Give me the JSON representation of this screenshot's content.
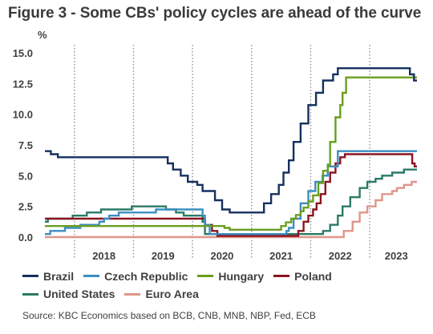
{
  "title": "Figure 3 - Some CBs' policy cycles are ahead of the curve",
  "source": "Source: KBC Economics based on BCB, CNB, MNB, NBP, Fed, ECB",
  "chart_data": {
    "type": "line",
    "title": "Figure 3 - Some CBs' policy cycles are ahead of the curve",
    "ylabel": "%",
    "xlabel": "",
    "ylim": [
      0,
      15
    ],
    "xlim": [
      2017.5,
      2023.8
    ],
    "yticks": [
      0,
      2.5,
      5,
      7.5,
      10,
      12.5,
      15
    ],
    "ytick_labels": [
      "0.0",
      "2.5",
      "5.0",
      "7.5",
      "10.0",
      "12.5",
      "15.0"
    ],
    "xtick_labels": [
      "2018",
      "2019",
      "2020",
      "2021",
      "2022",
      "2023"
    ],
    "x_separators": [
      2018.0,
      2019.0,
      2020.0,
      2021.0,
      2022.0,
      2023.0
    ],
    "grid": "dotted vertical year separators",
    "legend_position": "bottom",
    "series": [
      {
        "name": "Brazil",
        "color": "#15305f",
        "step": true,
        "points": [
          [
            2017.5,
            7.0
          ],
          [
            2017.6,
            6.75
          ],
          [
            2017.72,
            6.5
          ],
          [
            2018.95,
            6.5
          ],
          [
            2019.58,
            6.0
          ],
          [
            2019.67,
            5.5
          ],
          [
            2019.8,
            5.0
          ],
          [
            2019.92,
            4.5
          ],
          [
            2020.08,
            4.25
          ],
          [
            2020.17,
            3.75
          ],
          [
            2020.38,
            3.0
          ],
          [
            2020.5,
            2.25
          ],
          [
            2020.63,
            2.0
          ],
          [
            2021.21,
            2.75
          ],
          [
            2021.33,
            3.5
          ],
          [
            2021.46,
            4.25
          ],
          [
            2021.54,
            5.25
          ],
          [
            2021.63,
            6.25
          ],
          [
            2021.71,
            7.75
          ],
          [
            2021.83,
            9.25
          ],
          [
            2021.96,
            10.75
          ],
          [
            2022.09,
            11.75
          ],
          [
            2022.21,
            12.75
          ],
          [
            2022.38,
            13.25
          ],
          [
            2022.46,
            13.75
          ],
          [
            2023.6,
            13.75
          ],
          [
            2023.68,
            13.25
          ],
          [
            2023.75,
            12.75
          ],
          [
            2023.8,
            12.75
          ]
        ]
      },
      {
        "name": "Czech Republic",
        "color": "#3a8ec2",
        "step": true,
        "points": [
          [
            2017.5,
            0.25
          ],
          [
            2017.59,
            0.5
          ],
          [
            2017.84,
            0.75
          ],
          [
            2018.1,
            1.0
          ],
          [
            2018.42,
            1.25
          ],
          [
            2018.5,
            1.5
          ],
          [
            2018.59,
            1.75
          ],
          [
            2018.75,
            2.0
          ],
          [
            2019.38,
            2.25
          ],
          [
            2020.08,
            2.25
          ],
          [
            2020.17,
            1.75
          ],
          [
            2020.21,
            1.0
          ],
          [
            2020.29,
            0.25
          ],
          [
            2021.46,
            0.25
          ],
          [
            2021.59,
            0.5
          ],
          [
            2021.63,
            0.75
          ],
          [
            2021.71,
            1.5
          ],
          [
            2021.83,
            2.75
          ],
          [
            2021.96,
            3.75
          ],
          [
            2022.08,
            4.5
          ],
          [
            2022.2,
            5.0
          ],
          [
            2022.29,
            5.75
          ],
          [
            2022.46,
            7.0
          ],
          [
            2023.8,
            7.0
          ]
        ]
      },
      {
        "name": "Hungary",
        "color": "#6a9e1f",
        "step": true,
        "points": [
          [
            2017.5,
            0.9
          ],
          [
            2020.29,
            0.9
          ],
          [
            2020.54,
            0.75
          ],
          [
            2020.63,
            0.6
          ],
          [
            2021.46,
            0.6
          ],
          [
            2021.5,
            0.9
          ],
          [
            2021.58,
            1.2
          ],
          [
            2021.67,
            1.5
          ],
          [
            2021.75,
            1.8
          ],
          [
            2021.83,
            2.1
          ],
          [
            2021.88,
            2.4
          ],
          [
            2021.96,
            2.9
          ],
          [
            2022.04,
            3.4
          ],
          [
            2022.13,
            4.4
          ],
          [
            2022.21,
            5.4
          ],
          [
            2022.29,
            5.9
          ],
          [
            2022.33,
            7.75
          ],
          [
            2022.42,
            9.75
          ],
          [
            2022.5,
            10.75
          ],
          [
            2022.54,
            11.75
          ],
          [
            2022.6,
            13.0
          ],
          [
            2023.8,
            13.0
          ]
        ]
      },
      {
        "name": "Poland",
        "color": "#8b1520",
        "step": true,
        "points": [
          [
            2017.5,
            1.5
          ],
          [
            2020.17,
            1.5
          ],
          [
            2020.21,
            1.0
          ],
          [
            2020.33,
            0.5
          ],
          [
            2020.42,
            0.1
          ],
          [
            2021.75,
            0.1
          ],
          [
            2021.79,
            0.5
          ],
          [
            2021.88,
            1.25
          ],
          [
            2021.96,
            1.75
          ],
          [
            2022.04,
            2.25
          ],
          [
            2022.1,
            2.75
          ],
          [
            2022.17,
            3.5
          ],
          [
            2022.25,
            4.5
          ],
          [
            2022.33,
            5.25
          ],
          [
            2022.42,
            6.0
          ],
          [
            2022.5,
            6.5
          ],
          [
            2022.58,
            6.75
          ],
          [
            2023.67,
            6.75
          ],
          [
            2023.72,
            6.0
          ],
          [
            2023.76,
            5.75
          ],
          [
            2023.8,
            5.75
          ]
        ]
      },
      {
        "name": "United States",
        "color": "#2a7a66",
        "step": true,
        "points": [
          [
            2017.5,
            1.25
          ],
          [
            2017.55,
            1.5
          ],
          [
            2017.97,
            1.75
          ],
          [
            2018.21,
            2.0
          ],
          [
            2018.45,
            2.25
          ],
          [
            2018.97,
            2.5
          ],
          [
            2019.55,
            2.25
          ],
          [
            2019.72,
            2.0
          ],
          [
            2019.85,
            1.75
          ],
          [
            2020.17,
            1.25
          ],
          [
            2020.21,
            0.25
          ],
          [
            2022.21,
            0.5
          ],
          [
            2022.33,
            1.0
          ],
          [
            2022.46,
            1.75
          ],
          [
            2022.54,
            2.5
          ],
          [
            2022.67,
            3.25
          ],
          [
            2022.83,
            4.0
          ],
          [
            2022.96,
            4.5
          ],
          [
            2023.1,
            4.75
          ],
          [
            2023.21,
            5.0
          ],
          [
            2023.38,
            5.25
          ],
          [
            2023.58,
            5.5
          ],
          [
            2023.8,
            5.5
          ]
        ]
      },
      {
        "name": "Euro Area",
        "color": "#e0958a",
        "step": true,
        "points": [
          [
            2017.5,
            0.0
          ],
          [
            2022.54,
            0.0
          ],
          [
            2022.56,
            0.5
          ],
          [
            2022.71,
            1.25
          ],
          [
            2022.83,
            2.0
          ],
          [
            2022.96,
            2.5
          ],
          [
            2023.1,
            3.0
          ],
          [
            2023.21,
            3.5
          ],
          [
            2023.38,
            3.75
          ],
          [
            2023.46,
            4.0
          ],
          [
            2023.58,
            4.25
          ],
          [
            2023.71,
            4.5
          ],
          [
            2023.8,
            4.5
          ]
        ]
      }
    ]
  }
}
